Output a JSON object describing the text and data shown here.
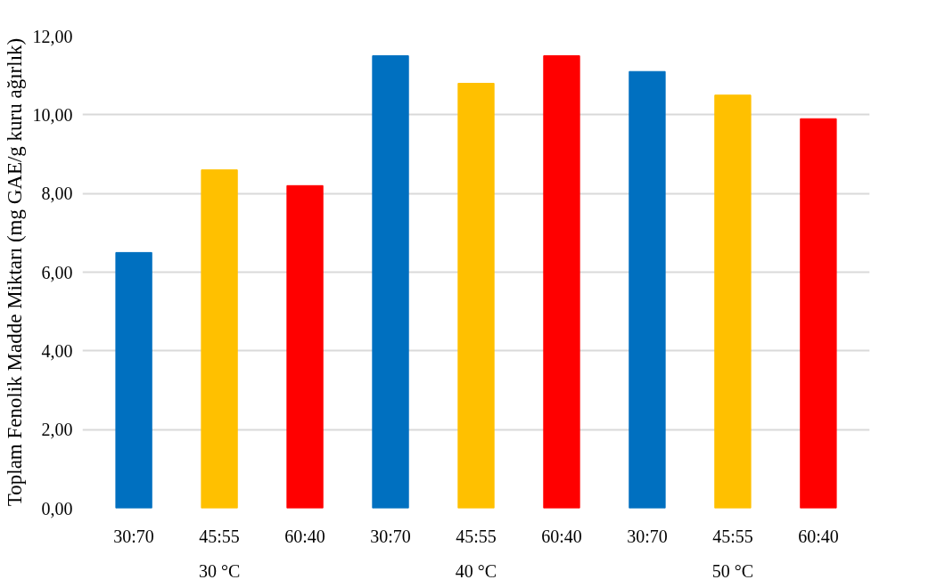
{
  "chart_data": {
    "type": "bar",
    "ylabel": "Toplam Fenolik Madde Miktarı (mg GAE/g kuru ağırlık)",
    "categories": [
      "30:70",
      "45:55",
      "60:40",
      "30:70",
      "45:55",
      "60:40",
      "30:70",
      "45:55",
      "60:40"
    ],
    "values": [
      6.5,
      8.6,
      8.2,
      11.5,
      10.8,
      11.5,
      11.1,
      10.5,
      9.9
    ],
    "colors": [
      "#0070c0",
      "#ffc000",
      "#ff0000",
      "#0070c0",
      "#ffc000",
      "#ff0000",
      "#0070c0",
      "#ffc000",
      "#ff0000"
    ],
    "annotations": [
      "30 °C",
      "40 °C",
      "50 °C"
    ],
    "ylim": [
      0,
      12
    ],
    "yticks": [
      {
        "value": 0,
        "label": "0,00"
      },
      {
        "value": 2,
        "label": "2,00"
      },
      {
        "value": 4,
        "label": "4,00"
      },
      {
        "value": 6,
        "label": "6,00"
      },
      {
        "value": 8,
        "label": "8,00"
      },
      {
        "value": 10,
        "label": "10,00"
      },
      {
        "value": 12,
        "label": "12,00"
      }
    ],
    "grid": "y"
  }
}
